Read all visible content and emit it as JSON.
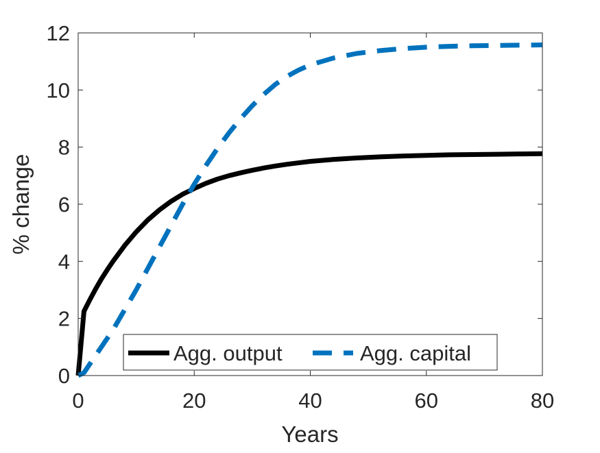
{
  "chart_data": {
    "type": "line",
    "title": "",
    "xlabel": "Years",
    "ylabel": "% change",
    "xlim": [
      0,
      80
    ],
    "ylim": [
      0,
      12
    ],
    "xticks": [
      0,
      20,
      40,
      60,
      80
    ],
    "yticks": [
      0,
      2,
      4,
      6,
      8,
      10,
      12
    ],
    "xtick_labels": [
      "0",
      "20",
      "40",
      "60",
      "80"
    ],
    "ytick_labels": [
      "0",
      "2",
      "4",
      "6",
      "8",
      "10",
      "12"
    ],
    "grid": false,
    "legend": {
      "placement": "bottom-center",
      "orientation": "horizontal"
    },
    "series": [
      {
        "name": "Agg. output",
        "color": "#000000",
        "line_style": "solid",
        "x": [
          0,
          1,
          2,
          3,
          4,
          5,
          6,
          8,
          10,
          12,
          14,
          16,
          18,
          20,
          22,
          24,
          26,
          28,
          30,
          32,
          34,
          36,
          38,
          40,
          44,
          48,
          52,
          56,
          60,
          64,
          68,
          72,
          76,
          80
        ],
        "y": [
          0,
          2.25,
          2.65,
          3.03,
          3.38,
          3.7,
          4.0,
          4.55,
          5.03,
          5.45,
          5.8,
          6.1,
          6.35,
          6.55,
          6.73,
          6.88,
          7.0,
          7.1,
          7.19,
          7.27,
          7.34,
          7.4,
          7.45,
          7.5,
          7.57,
          7.62,
          7.66,
          7.69,
          7.71,
          7.73,
          7.74,
          7.75,
          7.76,
          7.77
        ]
      },
      {
        "name": "Agg. capital",
        "color": "#0072BD",
        "line_style": "dashed",
        "x": [
          0,
          1,
          2,
          3,
          4,
          5,
          6,
          8,
          10,
          12,
          14,
          16,
          18,
          20,
          22,
          24,
          26,
          28,
          30,
          32,
          34,
          36,
          38,
          40,
          44,
          48,
          52,
          56,
          60,
          64,
          68,
          72,
          76,
          80
        ],
        "y": [
          0,
          0.1,
          0.4,
          0.7,
          1.0,
          1.3,
          1.6,
          2.3,
          3.0,
          3.75,
          4.5,
          5.25,
          6.0,
          6.7,
          7.35,
          7.95,
          8.5,
          9.0,
          9.45,
          9.85,
          10.2,
          10.48,
          10.7,
          10.88,
          11.12,
          11.28,
          11.38,
          11.45,
          11.5,
          11.53,
          11.55,
          11.56,
          11.57,
          11.58
        ]
      }
    ]
  }
}
